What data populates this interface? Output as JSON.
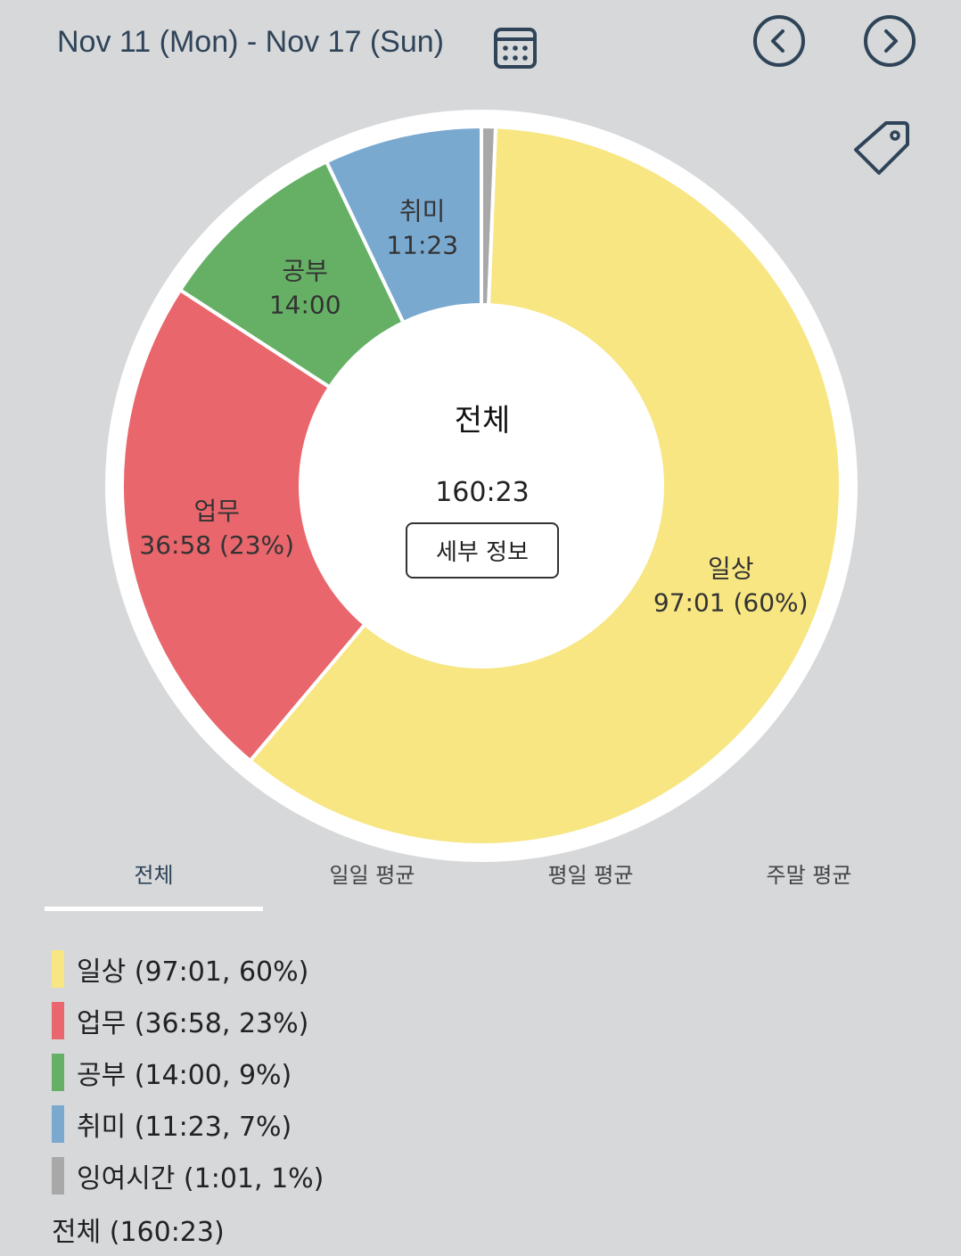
{
  "header": {
    "date_range": "Nov 11 (Mon) - Nov 17 (Sun)",
    "calendar_icon": "calendar-icon",
    "prev_icon": "chevron-left-circle-icon",
    "next_icon": "chevron-right-circle-icon",
    "tag_icon": "tag-icon",
    "accent_color": "#2f4458"
  },
  "center": {
    "title": "전체",
    "total": "160:23",
    "detail_button": "세부 정보"
  },
  "tabs": [
    {
      "label": "전체",
      "active": true
    },
    {
      "label": "일일 평균",
      "active": false
    },
    {
      "label": "평일 평균",
      "active": false
    },
    {
      "label": "주말 평균",
      "active": false
    }
  ],
  "legend": {
    "items": [
      {
        "text": "일상 (97:01, 60%)",
        "color": "#f7e682"
      },
      {
        "text": "업무 (36:58, 23%)",
        "color": "#e8666c"
      },
      {
        "text": "공부 (14:00, 9%)",
        "color": "#66b066"
      },
      {
        "text": "취미 (11:23, 7%)",
        "color": "#7aa9d0"
      },
      {
        "text": "잉여시간 (1:01, 1%)",
        "color": "#a8a8a8"
      }
    ],
    "total": "전체 (160:23)"
  },
  "chart_data": {
    "type": "pie",
    "donut": true,
    "categories": [
      "잉여시간",
      "일상",
      "업무",
      "공부",
      "취미"
    ],
    "values": [
      1.02,
      97.02,
      36.97,
      14.0,
      11.38
    ],
    "colors": [
      "#a8a8a8",
      "#f7e682",
      "#e8666c",
      "#66b066",
      "#7aa9d0"
    ],
    "slice_labels": [
      {
        "name": "",
        "value": ""
      },
      {
        "name": "일상",
        "value": "97:01 (60%)"
      },
      {
        "name": "업무",
        "value": "36:58 (23%)"
      },
      {
        "name": "공부",
        "value": "14:00"
      },
      {
        "name": "취미",
        "value": "11:23"
      }
    ],
    "total": "160:23"
  }
}
